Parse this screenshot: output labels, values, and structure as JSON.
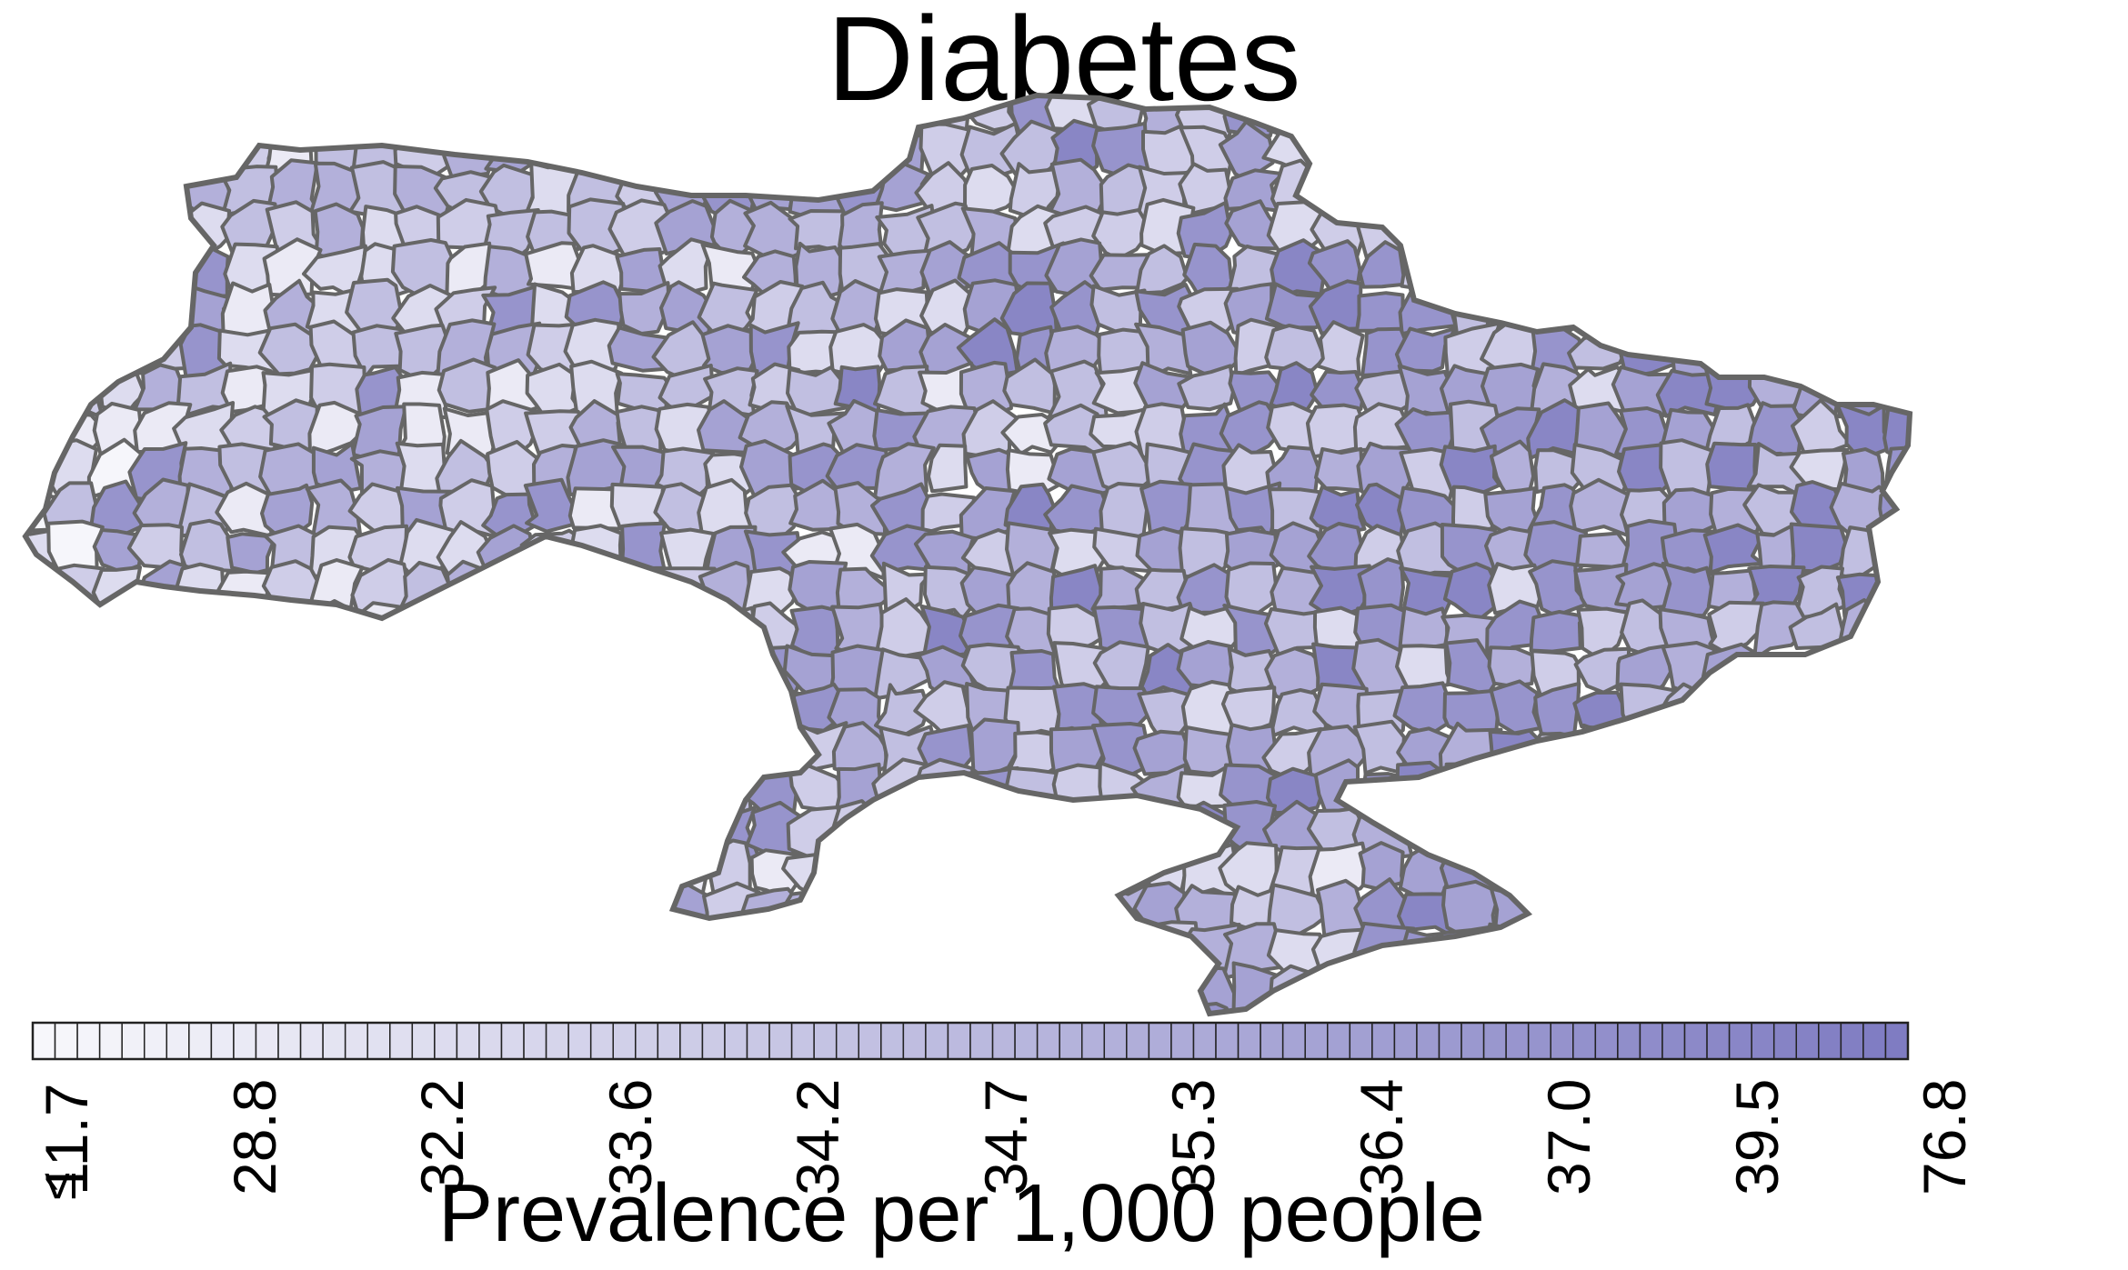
{
  "title": "Diabetes",
  "legend": {
    "title": "Prevalence per 1,000 people",
    "min_prefix": "≤",
    "ticks": [
      "11.7",
      "28.8",
      "32.2",
      "33.6",
      "34.2",
      "34.7",
      "35.3",
      "36.4",
      "37.0",
      "39.5",
      "76.8"
    ],
    "color_low": "#f7f7fb",
    "color_high": "#7f7cc2",
    "border_color": "#222222",
    "segments": 84
  },
  "map": {
    "region_border_color": "#666666",
    "palette": [
      "#f6f6fb",
      "#ebeaf5",
      "#dddcef",
      "#cfcde8",
      "#c1bfe1",
      "#b3b0da",
      "#a5a2d3",
      "#9794cc",
      "#8986c5"
    ]
  }
}
